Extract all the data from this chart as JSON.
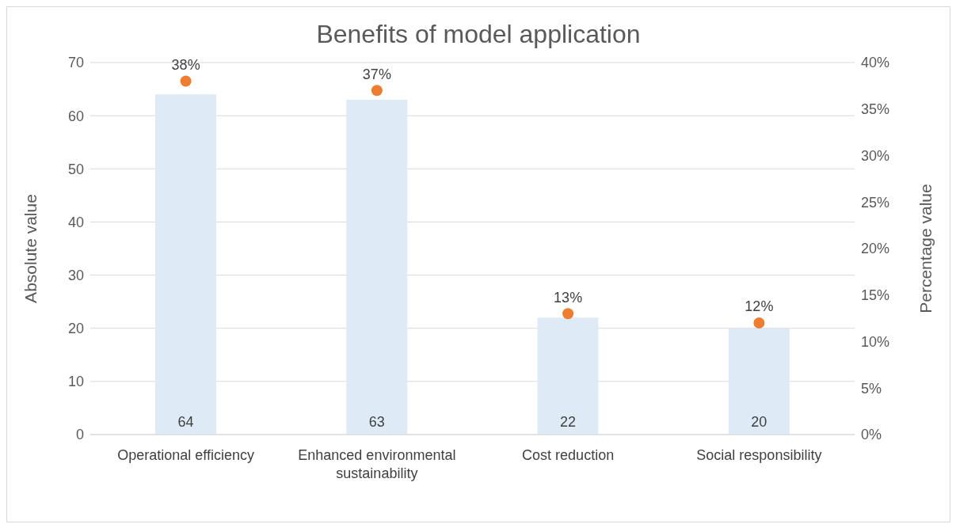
{
  "chart_data": {
    "type": "bar",
    "title": "Benefits of model application",
    "ylabel": "Absolute value",
    "y2label": "Percentage value",
    "categories": [
      "Operational efficiency",
      "Enhanced environmental sustainability",
      "Cost reduction",
      "Social responsibility"
    ],
    "series": [
      {
        "color": "#deebf7",
        "values": [
          64,
          63,
          22,
          20
        ],
        "value_labels": [
          "64",
          "63",
          "22",
          "20"
        ]
      },
      {
        "type": "scatter",
        "axis": "y2",
        "color": "#ed7d31",
        "values": [
          38,
          37,
          13,
          12
        ],
        "value_labels": [
          "38%",
          "37%",
          "13%",
          "12%"
        ]
      }
    ],
    "ylim": [
      0,
      70
    ],
    "yticks": [
      0,
      10,
      20,
      30,
      40,
      50,
      60,
      70
    ],
    "y2lim": [
      0,
      40
    ],
    "y2ticks": [
      {
        "value": 0,
        "label": "0%"
      },
      {
        "value": 5,
        "label": "5%"
      },
      {
        "value": 10,
        "label": "10%"
      },
      {
        "value": 15,
        "label": "15%"
      },
      {
        "value": 20,
        "label": "20%"
      },
      {
        "value": 25,
        "label": "25%"
      },
      {
        "value": 30,
        "label": "30%"
      },
      {
        "value": 35,
        "label": "35%"
      },
      {
        "value": 40,
        "label": "40%"
      }
    ],
    "grid": "y",
    "legend": false,
    "marker": "circle"
  }
}
